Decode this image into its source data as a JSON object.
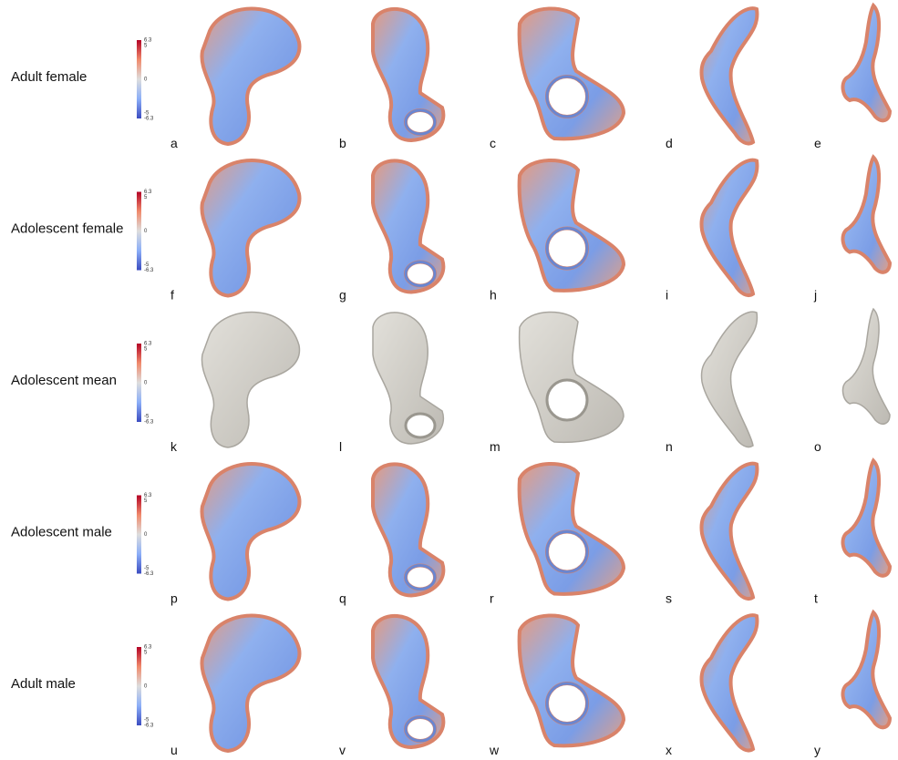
{
  "rows": [
    {
      "label": "Adult female",
      "panels": [
        "a",
        "b",
        "c",
        "d",
        "e"
      ]
    },
    {
      "label": "Adolescent female",
      "panels": [
        "f",
        "g",
        "h",
        "i",
        "j"
      ]
    },
    {
      "label": "Adolescent mean",
      "panels": [
        "k",
        "l",
        "m",
        "n",
        "o"
      ]
    },
    {
      "label": "Adolescent male",
      "panels": [
        "p",
        "q",
        "r",
        "s",
        "t"
      ]
    },
    {
      "label": "Adult male",
      "panels": [
        "u",
        "v",
        "w",
        "x",
        "y"
      ]
    }
  ],
  "colorbar": {
    "ticks": [
      "6.3",
      "5",
      "0",
      "-5",
      "-6.3"
    ]
  }
}
